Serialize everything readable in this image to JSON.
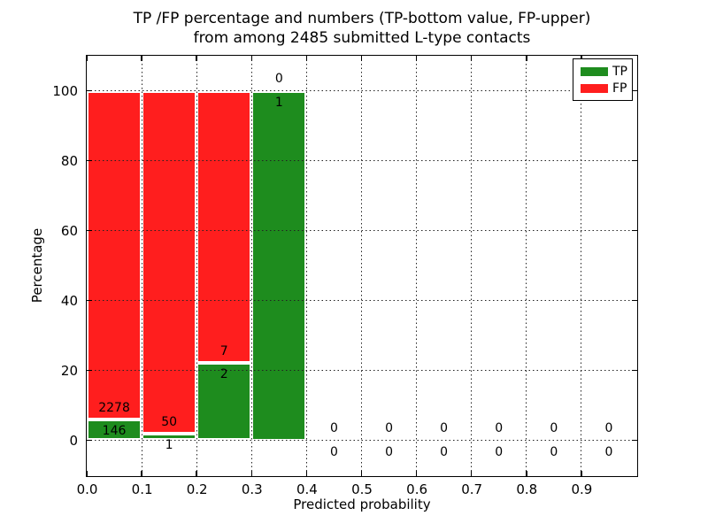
{
  "figure": {
    "title_line1": "TP /FP percentage and numbers (TP-bottom value, FP-upper)",
    "title_line2": "from among 2485 submitted L-type contacts"
  },
  "chart_data": {
    "type": "bar",
    "subtype": "stacked-percentage-histogram",
    "title": "TP /FP percentage and numbers (TP-bottom value, FP-upper)\nfrom among 2485 submitted L-type contacts",
    "xlabel": "Predicted probability",
    "ylabel": "Percentage",
    "total_submitted_contacts": 2485,
    "xlim": [
      0.0,
      1.0
    ],
    "ylim": [
      -10,
      110
    ],
    "bin_width": 0.1,
    "grid": "dotted",
    "xticks": [
      {
        "v": 0.0,
        "label": "0.0"
      },
      {
        "v": 0.1,
        "label": "0.1"
      },
      {
        "v": 0.2,
        "label": "0.2"
      },
      {
        "v": 0.3,
        "label": "0.3"
      },
      {
        "v": 0.4,
        "label": "0.4"
      },
      {
        "v": 0.5,
        "label": "0.5"
      },
      {
        "v": 0.6,
        "label": "0.6"
      },
      {
        "v": 0.7,
        "label": "0.7"
      },
      {
        "v": 0.8,
        "label": "0.8"
      },
      {
        "v": 0.9,
        "label": "0.9"
      }
    ],
    "yticks": [
      {
        "v": 0,
        "label": "0"
      },
      {
        "v": 20,
        "label": "20"
      },
      {
        "v": 40,
        "label": "40"
      },
      {
        "v": 60,
        "label": "60"
      },
      {
        "v": 80,
        "label": "80"
      },
      {
        "v": 100,
        "label": "100"
      }
    ],
    "bins": [
      {
        "range": [
          0.0,
          0.1
        ],
        "tp": 146,
        "fp": 2278
      },
      {
        "range": [
          0.1,
          0.2
        ],
        "tp": 1,
        "fp": 50
      },
      {
        "range": [
          0.2,
          0.3
        ],
        "tp": 2,
        "fp": 7
      },
      {
        "range": [
          0.3,
          0.4
        ],
        "tp": 1,
        "fp": 0
      },
      {
        "range": [
          0.4,
          0.5
        ],
        "tp": 0,
        "fp": 0
      },
      {
        "range": [
          0.5,
          0.6
        ],
        "tp": 0,
        "fp": 0
      },
      {
        "range": [
          0.6,
          0.7
        ],
        "tp": 0,
        "fp": 0
      },
      {
        "range": [
          0.7,
          0.8
        ],
        "tp": 0,
        "fp": 0
      },
      {
        "range": [
          0.8,
          0.9
        ],
        "tp": 0,
        "fp": 0
      },
      {
        "range": [
          0.9,
          1.0
        ],
        "tp": 0,
        "fp": 0
      }
    ],
    "colors": {
      "tp": "#1e8c1e",
      "fp": "#ff1e1e"
    },
    "legend": {
      "position": "upper right",
      "entries": [
        {
          "label": "TP",
          "color": "#1e8c1e"
        },
        {
          "label": "FP",
          "color": "#ff1e1e"
        }
      ]
    }
  }
}
